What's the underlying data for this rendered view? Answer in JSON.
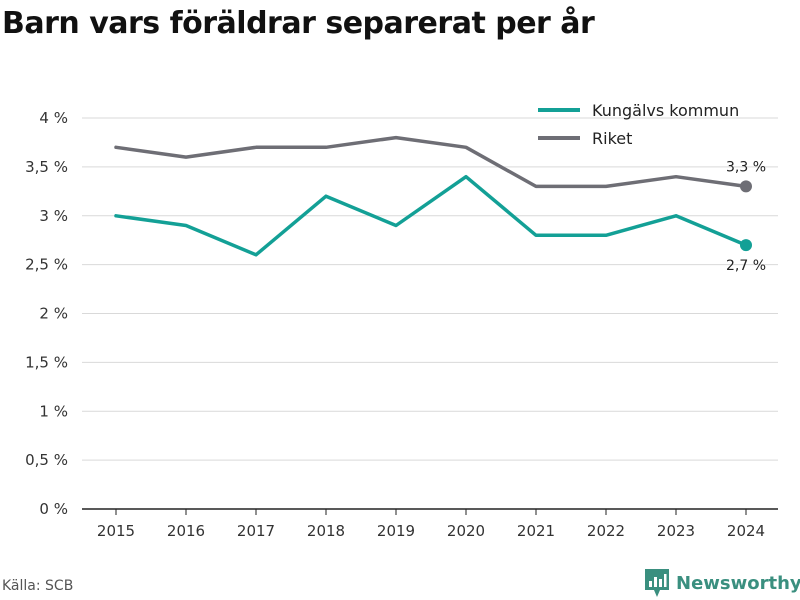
{
  "title": "Barn vars föräldrar separerat per år",
  "source": "Källa: SCB",
  "brand": {
    "name": "Newsworthy",
    "logo_icon": "newsworthy-logo-icon",
    "color": "#3a8f7f"
  },
  "chart_data": {
    "type": "line",
    "title": "Barn vars föräldrar separerat per år",
    "xlabel": "",
    "ylabel": "",
    "x": [
      2015,
      2016,
      2017,
      2018,
      2019,
      2020,
      2021,
      2022,
      2023,
      2024
    ],
    "y_ticks": [
      "0 %",
      "0,5 %",
      "1 %",
      "1,5 %",
      "2 %",
      "2,5 %",
      "3 %",
      "3,5 %",
      "4 %"
    ],
    "ylim": [
      0,
      4
    ],
    "grid": true,
    "legend_position": "top-right",
    "series": [
      {
        "name": "Kungälvs kommun",
        "color": "#13a096",
        "values": [
          3.0,
          2.9,
          2.6,
          3.2,
          2.9,
          3.4,
          2.8,
          2.8,
          3.0,
          2.7
        ],
        "end_label": "2,7 %"
      },
      {
        "name": "Riket",
        "color": "#6e6e75",
        "values": [
          3.7,
          3.6,
          3.7,
          3.7,
          3.8,
          3.7,
          3.3,
          3.3,
          3.4,
          3.3
        ],
        "end_label": "3,3 %"
      }
    ]
  }
}
